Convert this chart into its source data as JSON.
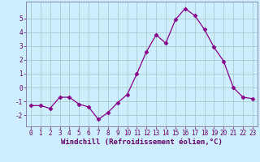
{
  "x": [
    0,
    1,
    2,
    3,
    4,
    5,
    6,
    7,
    8,
    9,
    10,
    11,
    12,
    13,
    14,
    15,
    16,
    17,
    18,
    19,
    20,
    21,
    22,
    23
  ],
  "y": [
    -1.3,
    -1.3,
    -1.5,
    -0.7,
    -0.7,
    -1.2,
    -1.4,
    -2.3,
    -1.8,
    -1.1,
    -0.5,
    1.0,
    2.6,
    3.8,
    3.2,
    4.9,
    5.7,
    5.2,
    4.2,
    2.9,
    1.9,
    0.0,
    -0.7,
    -0.8
  ],
  "line_color": "#880088",
  "marker": "D",
  "marker_size": 2.5,
  "bg_color": "#cceeff",
  "grid_color": "#aacccc",
  "xlabel": "Windchill (Refroidissement éolien,°C)",
  "ylim": [
    -2.8,
    6.2
  ],
  "xlim": [
    -0.5,
    23.5
  ],
  "yticks": [
    -2,
    -1,
    0,
    1,
    2,
    3,
    4,
    5
  ],
  "xticks": [
    0,
    1,
    2,
    3,
    4,
    5,
    6,
    7,
    8,
    9,
    10,
    11,
    12,
    13,
    14,
    15,
    16,
    17,
    18,
    19,
    20,
    21,
    22,
    23
  ],
  "tick_color": "#660066",
  "label_color": "#660066",
  "label_fontsize": 6.5,
  "tick_fontsize": 5.5,
  "spine_color": "#8888aa"
}
